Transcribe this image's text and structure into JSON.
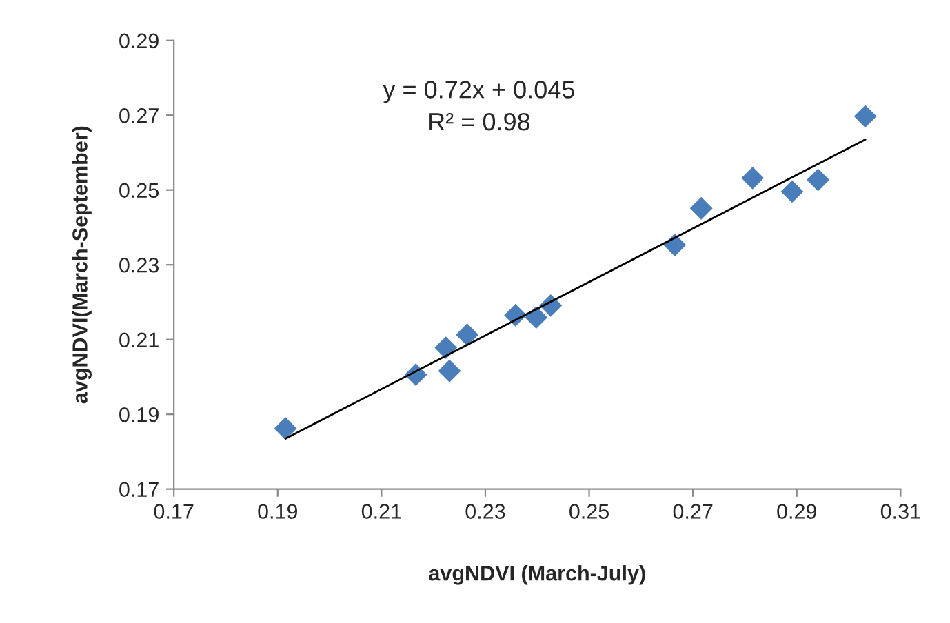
{
  "chart_data": {
    "type": "scatter",
    "xlabel": "avgNDVI (March-July)",
    "ylabel": "avgNDVI(March-September)",
    "annotations": [
      "y = 0.72x + 0.045\nR² = 0.98"
    ],
    "series": [
      {
        "color": "#4a7ebb",
        "marker": "diamond",
        "x": [
          0.1915,
          0.2166,
          0.2224,
          0.2231,
          0.2265,
          0.2358,
          0.2398,
          0.2426,
          0.2665,
          0.2716,
          0.2815,
          0.2891,
          0.2941,
          0.3032
        ],
        "values": [
          0.1862,
          0.2006,
          0.2078,
          0.2016,
          0.2113,
          0.2165,
          0.2159,
          0.2191,
          0.2353,
          0.2451,
          0.2532,
          0.2496,
          0.2527,
          0.2697
        ]
      },
      {
        "type": "line",
        "color": "#000000",
        "line_style": "solid",
        "x": [
          0.1915,
          0.3032
        ],
        "values": [
          0.1835,
          0.2635
        ]
      }
    ],
    "xlim": [
      0.17,
      0.31
    ],
    "xticks": [
      0.17,
      0.19,
      0.21,
      0.23,
      0.25,
      0.27,
      0.29,
      0.31
    ],
    "ylim": [
      0.17,
      0.29
    ],
    "yticks": [
      0.17,
      0.19,
      0.21,
      0.23,
      0.25,
      0.27,
      0.29
    ],
    "grid": false,
    "legend": false
  }
}
